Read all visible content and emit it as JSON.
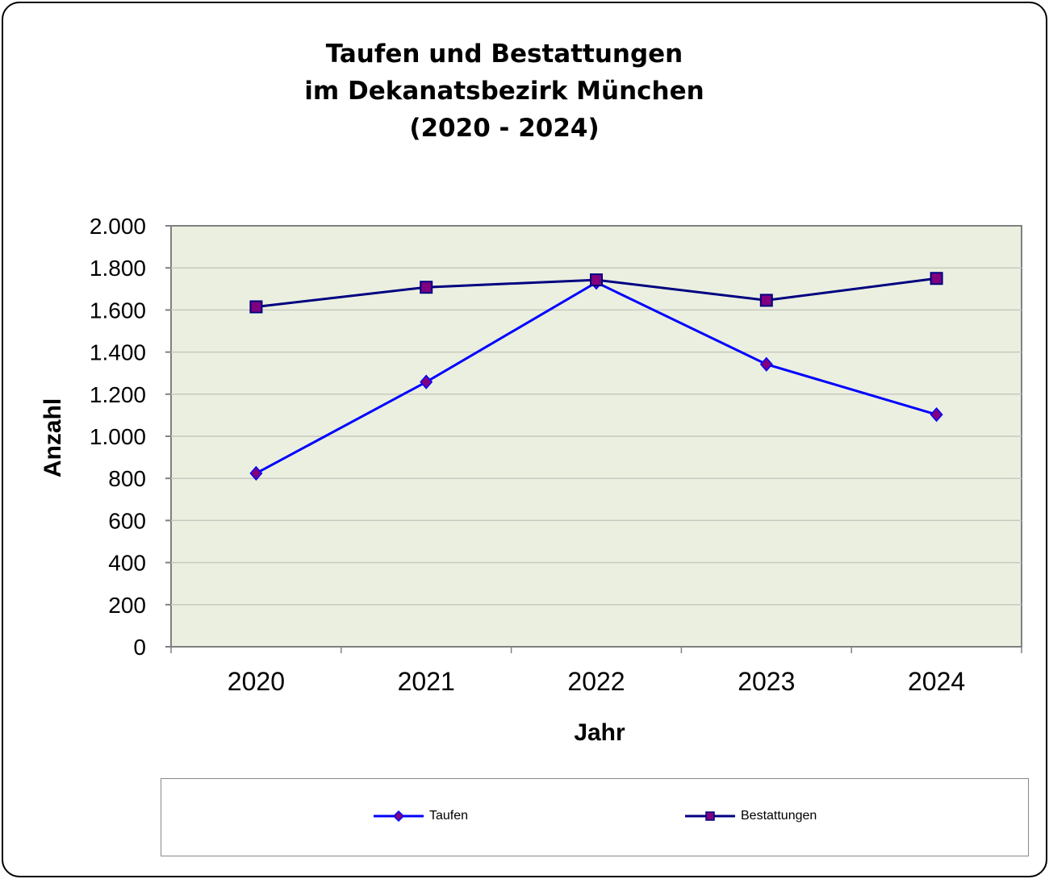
{
  "chart_data": {
    "type": "line",
    "title": [
      "Taufen und Bestattungen",
      "im Dekanatsbezirk München",
      "(2020 - 2024)"
    ],
    "xlabel": "Jahr",
    "ylabel": "Anzahl",
    "categories": [
      "2020",
      "2021",
      "2022",
      "2023",
      "2024"
    ],
    "ylim": [
      0,
      2000
    ],
    "yticks": [
      0,
      200,
      400,
      600,
      800,
      1000,
      1200,
      1400,
      1600,
      1800,
      2000
    ],
    "ytick_labels": [
      "0",
      "200",
      "400",
      "600",
      "800",
      "1.000",
      "1.200",
      "1.400",
      "1.600",
      "1.800",
      "2.000"
    ],
    "grid": true,
    "legend_position": "bottom",
    "plot_background": "#EBEFDF",
    "series": [
      {
        "name": "Taufen",
        "values": [
          824,
          1258,
          1731,
          1342,
          1103
        ],
        "color": "#0000FF",
        "marker": "diamond",
        "marker_fill": "#800080"
      },
      {
        "name": "Bestattungen",
        "values": [
          1615,
          1708,
          1743,
          1646,
          1750
        ],
        "color": "#000080",
        "marker": "square",
        "marker_fill": "#800080"
      }
    ]
  }
}
